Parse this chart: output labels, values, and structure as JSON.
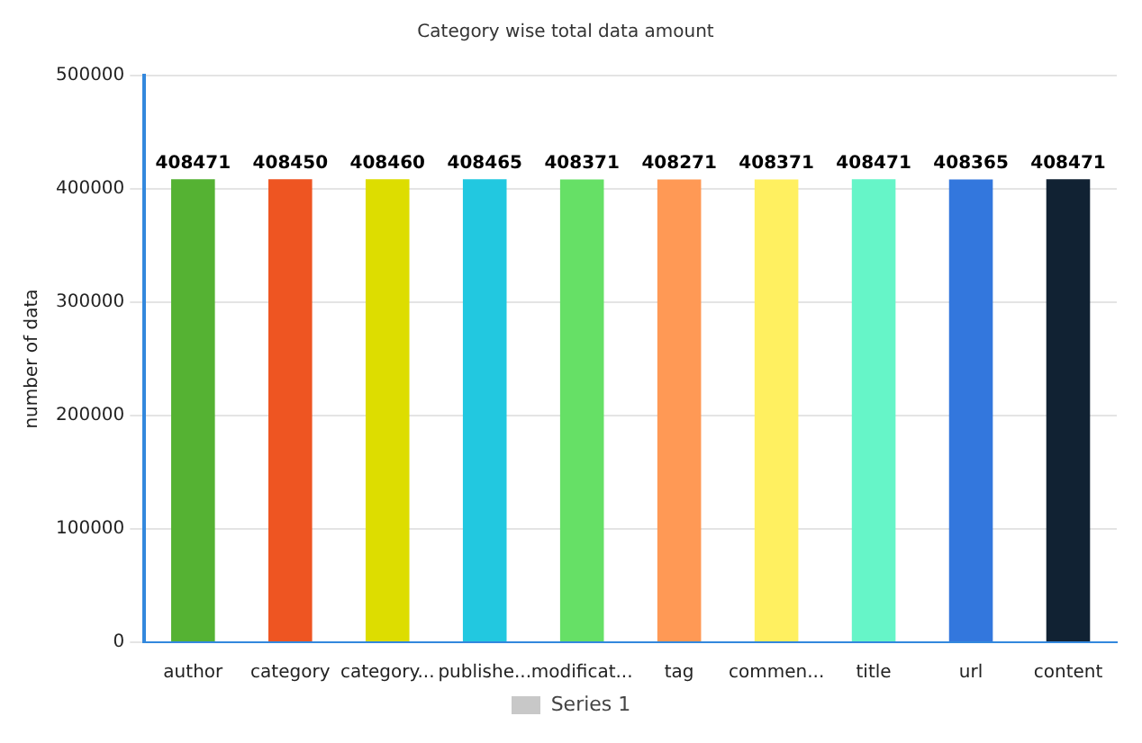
{
  "chart_data": {
    "type": "bar",
    "title": "Category wise total data amount",
    "ylabel": "number of data",
    "categories": [
      "author",
      "category",
      "category...",
      "publishe...",
      "modificat...",
      "tag",
      "commen...",
      "title",
      "url",
      "content"
    ],
    "series": [
      {
        "name": "Series 1",
        "color": "#c8c8c8",
        "colors": [
          "#55b233",
          "#ee5522",
          "#dddd00",
          "#22c8e0",
          "#66e066",
          "#ff9955",
          "#fff060",
          "#66f5c8",
          "#3377dd",
          "#112233"
        ],
        "values": [
          408471,
          408450,
          408460,
          408465,
          408371,
          408271,
          408371,
          408471,
          408365,
          408471
        ]
      }
    ],
    "ylim": [
      0,
      500000
    ],
    "yticks": [
      0,
      100000,
      200000,
      300000,
      400000,
      500000
    ],
    "grid": "y",
    "legend": "bottom",
    "data_labels": true
  }
}
